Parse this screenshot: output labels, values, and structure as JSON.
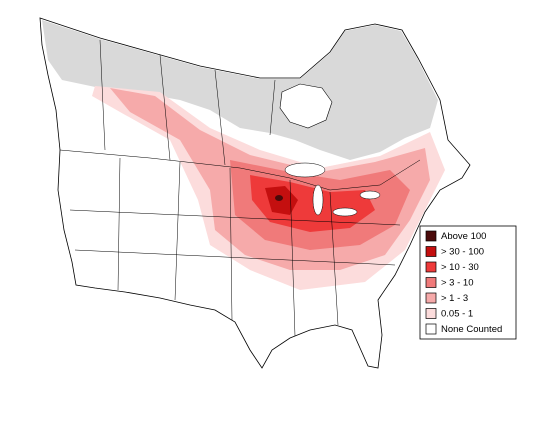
{
  "legend": {
    "items": [
      {
        "label": "Above 100",
        "color": "#4a0a0a"
      },
      {
        "label": "> 30 - 100",
        "color": "#c40f0f"
      },
      {
        "label": "> 10 - 30",
        "color": "#ee3a3a"
      },
      {
        "label": "> 3 - 10",
        "color": "#f07a7a"
      },
      {
        "label": "> 1 - 3",
        "color": "#f6aaaa"
      },
      {
        "label": "0.05 - 1",
        "color": "#fcdcdc"
      },
      {
        "label": "None Counted",
        "color": "#ffffff"
      }
    ]
  }
}
